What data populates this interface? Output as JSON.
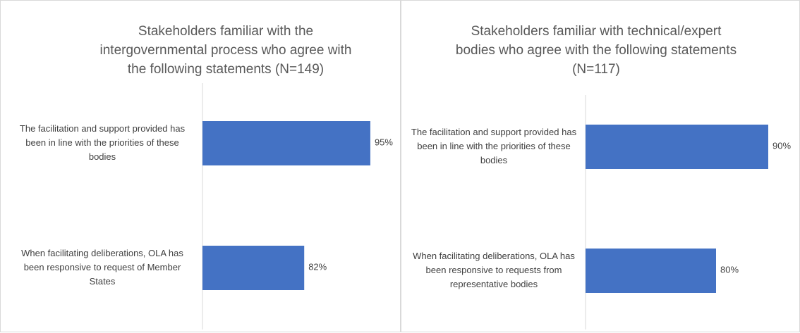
{
  "chart_data": [
    {
      "type": "bar",
      "orientation": "horizontal",
      "title": "Stakeholders familiar with the intergovernmental process who agree with the following statements (N=149)",
      "categories": [
        "The facilitation and support provided has been in line with the priorities of these bodies",
        "When facilitating deliberations, OLA has been responsive to request of Member States"
      ],
      "values": [
        95,
        82
      ],
      "value_labels": [
        "95%",
        "82%"
      ],
      "color": "#4472c4",
      "xlim": [
        62,
        100
      ]
    },
    {
      "type": "bar",
      "orientation": "horizontal",
      "title": "Stakeholders familiar with technical/expert bodies who agree with  the following statements (N=117)",
      "categories": [
        "The facilitation and support provided has been in line with the priorities of these bodies",
        "When facilitating deliberations, OLA has been responsive to requests from representative bodies"
      ],
      "values": [
        90,
        80
      ],
      "value_labels": [
        "90%",
        "80%"
      ],
      "color": "#4472c4",
      "xlim": [
        55,
        95
      ]
    }
  ]
}
